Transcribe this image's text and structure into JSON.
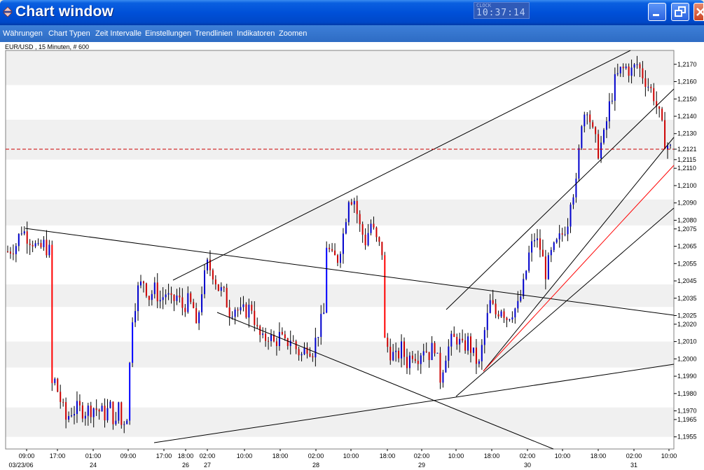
{
  "window": {
    "title": "Chart window",
    "clock_label": "CLOCK",
    "clock_time": "10:37:14"
  },
  "menu": {
    "items": [
      "Währungen",
      "Chart Typen",
      "Zeit Intervalle",
      "Einstellungen",
      "Trendlinien",
      "Indikatoren",
      "Zoomen"
    ]
  },
  "chart_data": {
    "type": "candlestick",
    "title": "EUR/USD , 15 Minuten, # 600",
    "y_ticks": [
      "1,2170",
      "1,2160",
      "1,2150",
      "1,2140",
      "1,2130",
      "1,2121",
      "1,2115",
      "1,2110",
      "1,2100",
      "1,2090",
      "1,2080",
      "1,2075",
      "1,2065",
      "1,2055",
      "1,2045",
      "1,2035",
      "1,2025",
      "1,2020",
      "1,2010",
      "1,2000",
      "1,1990",
      "1,1980",
      "1,1970",
      "1,1965",
      "1,1955"
    ],
    "current_price": 1.2121,
    "ylim": [
      1.1948,
      1.2178
    ],
    "x_time_labels": [
      "09:00",
      "17:00",
      "01:00",
      "09:00",
      "17:00",
      "18:00",
      "02:00",
      "10:00",
      "18:00",
      "02:00",
      "10:00",
      "18:00",
      "02:00",
      "10:00",
      "18:00",
      "02:00",
      "10:00",
      "18:00",
      "02:00",
      "10:00"
    ],
    "x_date_labels": [
      "03/23/06",
      "24",
      "26",
      "27",
      "28",
      "29",
      "30",
      "31"
    ],
    "price_path": [
      [
        0,
        1.2062
      ],
      [
        3,
        1.2066
      ],
      [
        5,
        1.2075
      ],
      [
        7,
        1.2071
      ],
      [
        9,
        1.2068
      ],
      [
        11,
        1.2062
      ],
      [
        13,
        1.2066
      ],
      [
        15,
        1.2062
      ],
      [
        16,
        1.1985
      ],
      [
        17,
        1.1987
      ],
      [
        19,
        1.1976
      ],
      [
        21,
        1.1965
      ],
      [
        23,
        1.197
      ],
      [
        25,
        1.1971
      ],
      [
        28,
        1.197
      ],
      [
        31,
        1.1972
      ],
      [
        33,
        1.197
      ],
      [
        35,
        1.1968
      ],
      [
        37,
        1.1972
      ],
      [
        39,
        1.1961
      ],
      [
        40,
        1.1975
      ],
      [
        41,
        1.1962
      ],
      [
        43,
        1.1968
      ],
      [
        45,
        1.2025
      ],
      [
        47,
        1.204
      ],
      [
        49,
        1.2045
      ],
      [
        51,
        1.2036
      ],
      [
        53,
        1.204
      ],
      [
        55,
        1.2034
      ],
      [
        57,
        1.2038
      ],
      [
        59,
        1.2032
      ],
      [
        61,
        1.2036
      ],
      [
        63,
        1.203
      ],
      [
        65,
        1.2033
      ],
      [
        67,
        1.2029
      ],
      [
        68,
        1.2016
      ],
      [
        70,
        1.204
      ],
      [
        72,
        1.2054
      ],
      [
        74,
        1.205
      ],
      [
        76,
        1.2041
      ],
      [
        78,
        1.2037
      ],
      [
        80,
        1.2028
      ],
      [
        82,
        1.203
      ],
      [
        84,
        1.2026
      ],
      [
        86,
        1.2028
      ],
      [
        88,
        1.203
      ],
      [
        90,
        1.2016
      ],
      [
        92,
        1.201
      ],
      [
        94,
        1.2014
      ],
      [
        96,
        1.2009
      ],
      [
        98,
        1.2013
      ],
      [
        100,
        1.2008
      ],
      [
        102,
        1.2012
      ],
      [
        104,
        1.2006
      ],
      [
        106,
        1.2002
      ],
      [
        108,
        1.2008
      ],
      [
        110,
        1.2005
      ],
      [
        112,
        1.2016
      ],
      [
        114,
        1.2026
      ],
      [
        115,
        1.2066
      ],
      [
        117,
        1.2058
      ],
      [
        119,
        1.2058
      ],
      [
        121,
        1.2072
      ],
      [
        123,
        1.2094
      ],
      [
        125,
        1.2092
      ],
      [
        127,
        1.2076
      ],
      [
        129,
        1.2068
      ],
      [
        131,
        1.2078
      ],
      [
        133,
        1.2068
      ],
      [
        135,
        1.2062
      ],
      [
        136,
        1.201
      ],
      [
        138,
        1.2004
      ],
      [
        140,
        1.2
      ],
      [
        142,
        1.2006
      ],
      [
        144,
        1.1998
      ],
      [
        146,
        1.2004
      ],
      [
        148,
        1.2002
      ],
      [
        150,
        1.2007
      ],
      [
        152,
        1.2003
      ],
      [
        154,
        1.2008
      ],
      [
        156,
        1.1989
      ],
      [
        158,
        1.2003
      ],
      [
        160,
        1.201
      ],
      [
        162,
        1.2012
      ],
      [
        164,
        1.2006
      ],
      [
        166,
        1.201
      ],
      [
        168,
        1.2002
      ],
      [
        170,
        1.1996
      ],
      [
        172,
        1.2016
      ],
      [
        174,
        1.2032
      ],
      [
        176,
        1.2026
      ],
      [
        178,
        1.203
      ],
      [
        180,
        1.2024
      ],
      [
        182,
        1.2028
      ],
      [
        184,
        1.203
      ],
      [
        186,
        1.2042
      ],
      [
        188,
        1.206
      ],
      [
        190,
        1.207
      ],
      [
        192,
        1.2064
      ],
      [
        194,
        1.205
      ],
      [
        196,
        1.206
      ],
      [
        198,
        1.2066
      ],
      [
        200,
        1.2072
      ],
      [
        202,
        1.208
      ],
      [
        203,
        1.2094
      ],
      [
        205,
        1.21
      ],
      [
        207,
        1.2138
      ],
      [
        209,
        1.2146
      ],
      [
        211,
        1.213
      ],
      [
        213,
        1.212
      ],
      [
        215,
        1.2128
      ],
      [
        217,
        1.2146
      ],
      [
        219,
        1.216
      ],
      [
        221,
        1.2166
      ],
      [
        223,
        1.2168
      ],
      [
        225,
        1.2166
      ],
      [
        227,
        1.217
      ],
      [
        229,
        1.2164
      ],
      [
        231,
        1.2158
      ],
      [
        233,
        1.2152
      ],
      [
        235,
        1.214
      ],
      [
        237,
        1.2126
      ],
      [
        239,
        1.2121
      ]
    ]
  }
}
